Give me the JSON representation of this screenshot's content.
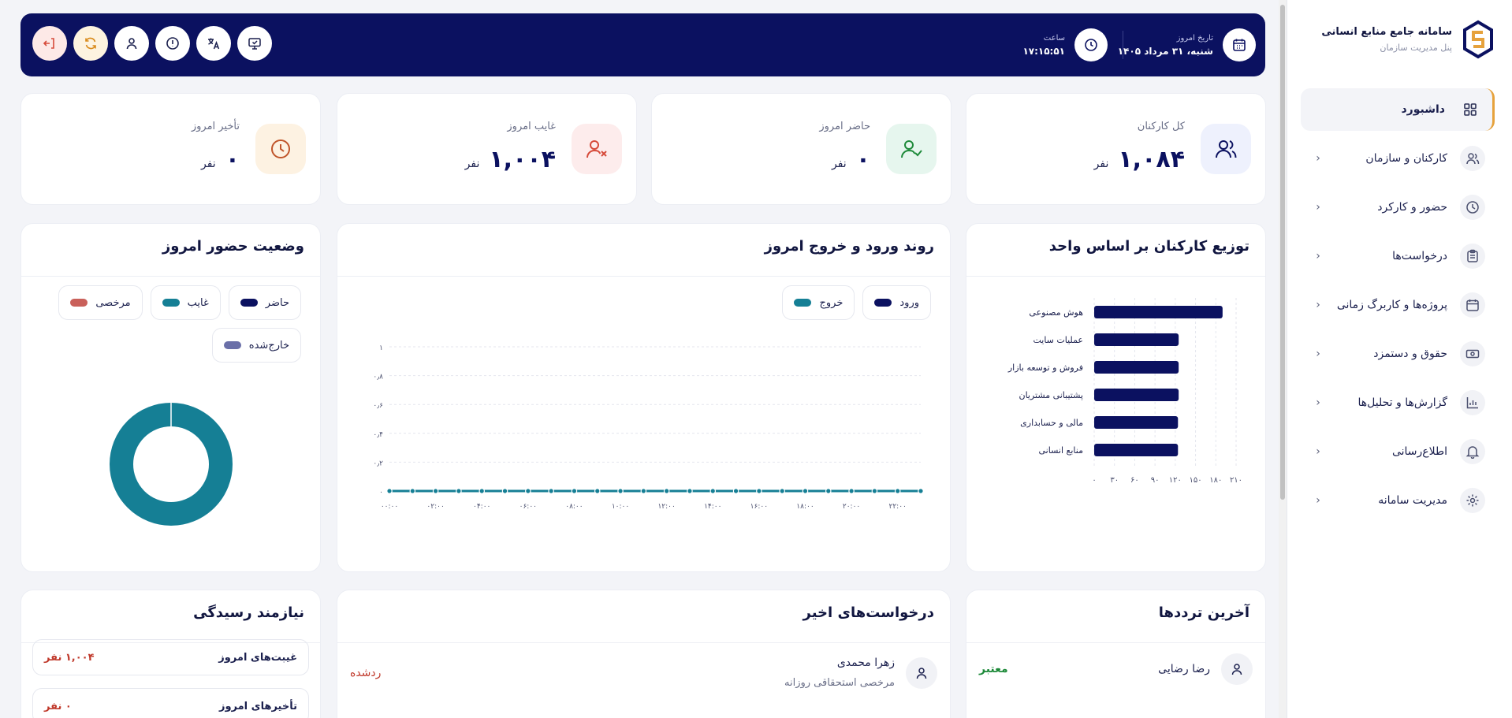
{
  "brand": {
    "title": "سامانه جامع منابع انسانی",
    "subtitle": "پنل مدیریت سازمان"
  },
  "sidebar": {
    "items": [
      {
        "label": "داشبورد",
        "icon": "dashboard-icon",
        "active": true
      },
      {
        "label": "کارکنان و سازمان",
        "icon": "users-icon"
      },
      {
        "label": "حضور و کارکرد",
        "icon": "clock-icon"
      },
      {
        "label": "درخواست‌ها",
        "icon": "clipboard-icon"
      },
      {
        "label": "پروژه‌ها و کاربرگ زمانی",
        "icon": "calendar-icon"
      },
      {
        "label": "حقوق و دستمزد",
        "icon": "cash-icon"
      },
      {
        "label": "گزارش‌ها و تحلیل‌ها",
        "icon": "chart-icon"
      },
      {
        "label": "اطلاع‌رسانی",
        "icon": "bell-icon"
      },
      {
        "label": "مدیریت سامانه",
        "icon": "gear-icon"
      }
    ]
  },
  "header": {
    "date_label": "تاریخ امروز",
    "date_value": "شنبه، ۳۱ مرداد ۱۴۰۵",
    "time_label": "ساعت",
    "time_value": "۱۷:۱۵:۵۱"
  },
  "stats": [
    {
      "label": "کل کارکنان",
      "value": "۱,۰۸۴",
      "unit": "نفر",
      "color": "#eef1fd"
    },
    {
      "label": "حاضر امروز",
      "value": "۰",
      "unit": "نفر",
      "color": "#e6f6ee"
    },
    {
      "label": "غایب امروز",
      "value": "۱,۰۰۴",
      "unit": "نفر",
      "color": "#fdecec"
    },
    {
      "label": "تأخیر امروز",
      "value": "۰",
      "unit": "نفر",
      "color": "#fdf2e2"
    }
  ],
  "panels": {
    "dept": {
      "title": "توزیع کارکنان بر اساس واحد"
    },
    "trend": {
      "title": "روند ورود و خروج امروز",
      "legend_in": "ورود",
      "legend_out": "خروج"
    },
    "status": {
      "title": "وضعیت حضور امروز",
      "legend": [
        "حاضر",
        "غایب",
        "مرخصی",
        "خارج‌شده"
      ]
    },
    "recent_traffic": {
      "title": "آخرین ترددها",
      "name": "رضا رضایی",
      "status": "معتبر"
    },
    "recent_requests": {
      "title": "درخواست‌های اخیر",
      "name": "زهرا محمدی",
      "type": "مرخصی استحقاقی روزانه",
      "status": "ردشده"
    },
    "attention": {
      "title": "نیازمند رسیدگی",
      "rows": [
        {
          "title": "غیبت‌های امروز",
          "value": "۱,۰۰۴ نفر"
        },
        {
          "title": "تأخیرهای امروز",
          "value": "۰ نفر"
        }
      ]
    }
  },
  "colors": {
    "navy": "#0b1160",
    "teal": "#157f95",
    "red": "#c0392b",
    "green": "#1e8a3a",
    "leave": "#c9605a",
    "out": "#6a6fa8"
  },
  "chart_data": [
    {
      "type": "bar",
      "title": "توزیع کارکنان بر اساس واحد",
      "orientation": "horizontal",
      "categories": [
        "هوش مصنوعی",
        "عملیات سایت",
        "فروش و توسعه بازار",
        "پشتیبانی مشتریان",
        "مالی و حسابداری",
        "منابع انسانی"
      ],
      "values": [
        190,
        125,
        125,
        125,
        124,
        124
      ],
      "xlim": [
        0,
        210
      ],
      "xticks": [
        "۰",
        "۳۰",
        "۶۰",
        "۹۰",
        "۱۲۰",
        "۱۵۰",
        "۱۸۰",
        "۲۱۰"
      ],
      "grid": true
    },
    {
      "type": "line",
      "title": "روند ورود و خروج امروز",
      "x": [
        "۰۰:۰۰",
        "۰۲:۰۰",
        "۰۴:۰۰",
        "۰۶:۰۰",
        "۰۸:۰۰",
        "۱۰:۰۰",
        "۱۲:۰۰",
        "۱۴:۰۰",
        "۱۶:۰۰",
        "۱۸:۰۰",
        "۲۰:۰۰",
        "۲۲:۰۰"
      ],
      "points_per_series": 24,
      "series": [
        {
          "name": "ورود",
          "color": "#0b1160",
          "value": 0
        },
        {
          "name": "خروج",
          "color": "#157f95",
          "value": 0
        }
      ],
      "ylim": [
        0,
        1
      ],
      "yticks": [
        "۰",
        "۰٫۲",
        "۰٫۴",
        "۰٫۶",
        "۰٫۸",
        "۱"
      ],
      "legend": "top-right"
    },
    {
      "type": "pie",
      "title": "وضعیت حضور امروز",
      "donut": true,
      "labels": [
        "حاضر",
        "غایب",
        "مرخصی",
        "خارج‌شده"
      ],
      "values": [
        0,
        1004,
        0,
        0
      ]
    }
  ]
}
